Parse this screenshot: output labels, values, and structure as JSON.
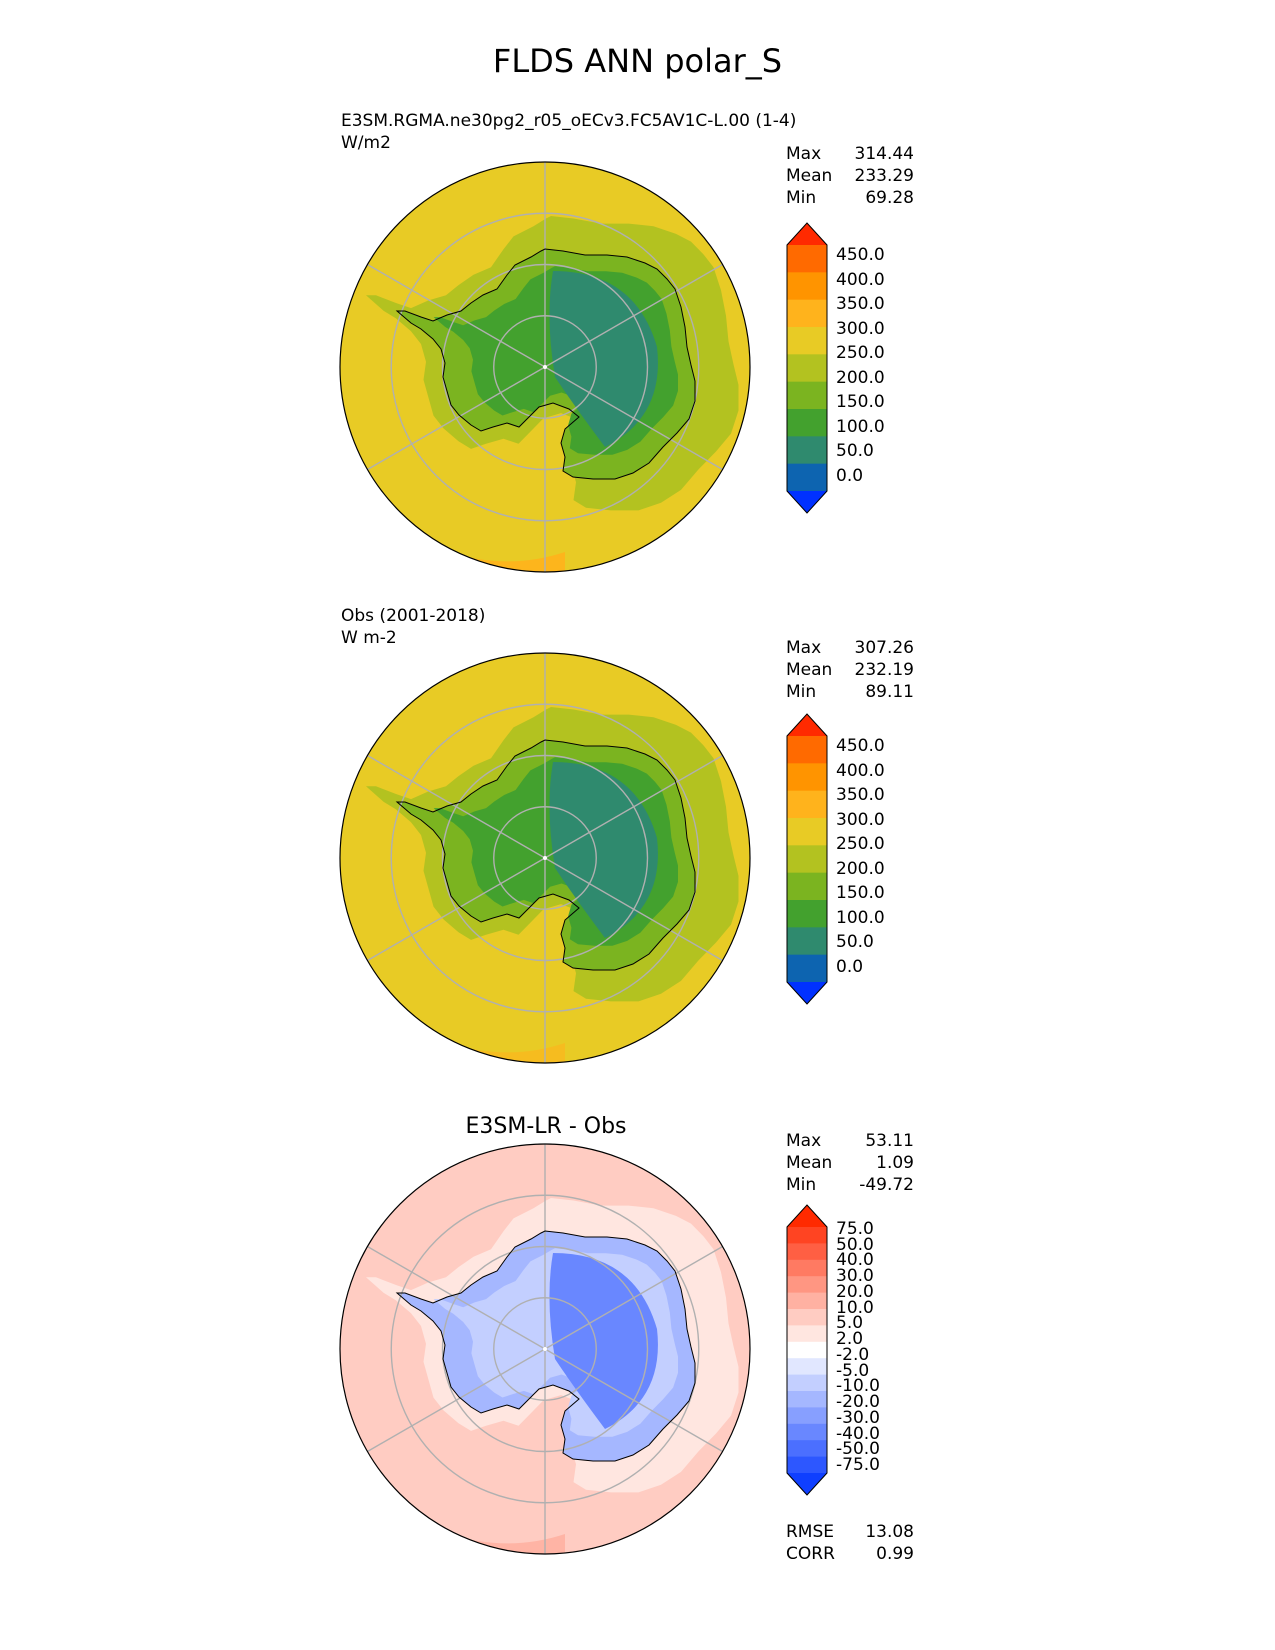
{
  "figure": {
    "title": "FLDS ANN polar_S"
  },
  "panels": [
    {
      "id": "test",
      "title_lines": [
        "E3SM.RGMA.ne30pg2_r05_oECv3.FC5AV1C-L.00 (1-4)",
        "W/m2"
      ],
      "stats": [
        {
          "label": "Max",
          "value": "314.44"
        },
        {
          "label": "Mean",
          "value": "233.29"
        },
        {
          "label": "Min",
          "value": "69.28"
        }
      ],
      "colorbar": {
        "ticks": [
          "450.0",
          "400.0",
          "350.0",
          "300.0",
          "250.0",
          "200.0",
          "150.0",
          "100.0",
          "50.0",
          "0.0"
        ],
        "colors": [
          "#ff2a00",
          "#ff6a00",
          "#ff9400",
          "#ffb31c",
          "#e8cb25",
          "#b3c220",
          "#7bb420",
          "#43a12e",
          "#2f8a6e",
          "#0d64b0",
          "#0031ff"
        ]
      }
    },
    {
      "id": "ref",
      "title_lines": [
        "Obs (2001-2018)",
        "W m-2"
      ],
      "stats": [
        {
          "label": "Max",
          "value": "307.26"
        },
        {
          "label": "Mean",
          "value": "232.19"
        },
        {
          "label": "Min",
          "value": "89.11"
        }
      ],
      "colorbar": {
        "ticks": [
          "450.0",
          "400.0",
          "350.0",
          "300.0",
          "250.0",
          "200.0",
          "150.0",
          "100.0",
          "50.0",
          "0.0"
        ],
        "colors": [
          "#ff2a00",
          "#ff6a00",
          "#ff9400",
          "#ffb31c",
          "#e8cb25",
          "#b3c220",
          "#7bb420",
          "#43a12e",
          "#2f8a6e",
          "#0d64b0",
          "#0031ff"
        ]
      }
    },
    {
      "id": "diff",
      "title": "E3SM-LR - Obs",
      "stats": [
        {
          "label": "Max",
          "value": "53.11"
        },
        {
          "label": "Mean",
          "value": "1.09"
        },
        {
          "label": "Min",
          "value": "-49.72"
        }
      ],
      "colorbar": {
        "ticks": [
          "75.0",
          "50.0",
          "40.0",
          "30.0",
          "20.0",
          "10.0",
          "5.0",
          "2.0",
          "-2.0",
          "-5.0",
          "-10.0",
          "-20.0",
          "-30.0",
          "-40.0",
          "-50.0",
          "-75.0"
        ],
        "colors": [
          "#ff2a00",
          "#ff4422",
          "#ff5f43",
          "#ff7a62",
          "#ff9682",
          "#ffb1a2",
          "#ffccc2",
          "#ffe6e0",
          "#ffffff",
          "#e1e7ff",
          "#c3cfff",
          "#a5b7ff",
          "#879fff",
          "#6987ff",
          "#4b6fff",
          "#2d57ff",
          "#0f3fff"
        ]
      },
      "metrics": [
        {
          "label": "RMSE",
          "value": "13.08"
        },
        {
          "label": "CORR",
          "value": "0.99"
        }
      ]
    }
  ],
  "map_fields": {
    "test": {
      "ocean_color": "#e8cb25",
      "outer_warm_color": "#ffb31c",
      "ring_color": "#b3c220",
      "ice_color": "#7bb420",
      "inner_color": "#43a12e",
      "plateau_color": "#2f8a6e"
    },
    "ref": {
      "ocean_color": "#e8cb25",
      "outer_warm_color": "#ffb31c",
      "ring_color": "#b3c220",
      "ice_color": "#7bb420",
      "inner_color": "#43a12e",
      "plateau_color": "#2f8a6e"
    },
    "diff": {
      "ocean_color": "#ffccc2",
      "outer_warm_color": "#ffb1a2",
      "ring_color": "#ffe6e0",
      "ice_color": "#a5b7ff",
      "inner_color": "#c3cfff",
      "plateau_color": "#6987ff"
    }
  }
}
